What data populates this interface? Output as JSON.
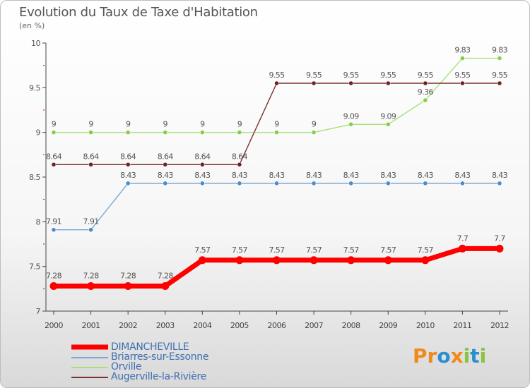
{
  "title": "Evolution du Taux de Taxe d'Habitation",
  "subtitle": "(en %)",
  "brand": {
    "text": "Proxiti"
  },
  "chart_data": {
    "type": "line",
    "title": "Evolution du Taux de Taxe d'Habitation",
    "ylabel": "(en %)",
    "xlabel": "",
    "ylim": [
      7,
      10
    ],
    "yticks": [
      "7",
      "7.5",
      "8",
      "8.5",
      "9",
      "9.5",
      "10"
    ],
    "categories": [
      "2000",
      "2001",
      "2002",
      "2003",
      "2004",
      "2005",
      "2006",
      "2007",
      "2008",
      "2009",
      "2010",
      "2011",
      "2012"
    ],
    "legend_position": "bottom-left",
    "series": [
      {
        "name": "DIMANCHEVILLE",
        "color": "#ff0000",
        "marker": "#ff0000",
        "thick": true,
        "values": [
          7.28,
          7.28,
          7.28,
          7.28,
          7.57,
          7.57,
          7.57,
          7.57,
          7.57,
          7.57,
          7.57,
          7.7,
          7.7
        ],
        "labels": [
          "7.28",
          "7.28",
          "7.28",
          "7.28",
          "7.57",
          "7.57",
          "7.57",
          "7.57",
          "7.57",
          "7.57",
          "7.57",
          "7.7",
          "7.7"
        ]
      },
      {
        "name": "Briarres-sur-Essonne",
        "color": "#7ba7d4",
        "marker": "#4a8bc6",
        "thick": false,
        "values": [
          7.91,
          7.91,
          8.43,
          8.43,
          8.43,
          8.43,
          8.43,
          8.43,
          8.43,
          8.43,
          8.43,
          8.43,
          8.43
        ],
        "labels": [
          "7.91",
          "7.91",
          "8.43",
          "8.43",
          "8.43",
          "8.43",
          "8.43",
          "8.43",
          "8.43",
          "8.43",
          "8.43",
          "8.43",
          "8.43"
        ]
      },
      {
        "name": "Orville",
        "color": "#a8e07a",
        "marker": "#86cc4a",
        "thick": false,
        "values": [
          9,
          9,
          9,
          9,
          9,
          9,
          9,
          9,
          9.09,
          9.09,
          9.36,
          9.83,
          9.83
        ],
        "labels": [
          "9",
          "9",
          "9",
          "9",
          "9",
          "9",
          "9",
          "9",
          "9.09",
          "9.09",
          "9.36",
          "9.83",
          "9.83"
        ]
      },
      {
        "name": "Augerville-la-Rivière",
        "color": "#7a2f2f",
        "marker": "#6b2222",
        "thick": false,
        "values": [
          8.64,
          8.64,
          8.64,
          8.64,
          8.64,
          8.64,
          9.55,
          9.55,
          9.55,
          9.55,
          9.55,
          9.55,
          9.55
        ],
        "labels": [
          "8.64",
          "8.64",
          "8.64",
          "8.64",
          "8.64",
          "8.64",
          "9.55",
          "9.55",
          "9.55",
          "9.55",
          "9.55",
          "9.55",
          "9.55"
        ]
      }
    ]
  }
}
